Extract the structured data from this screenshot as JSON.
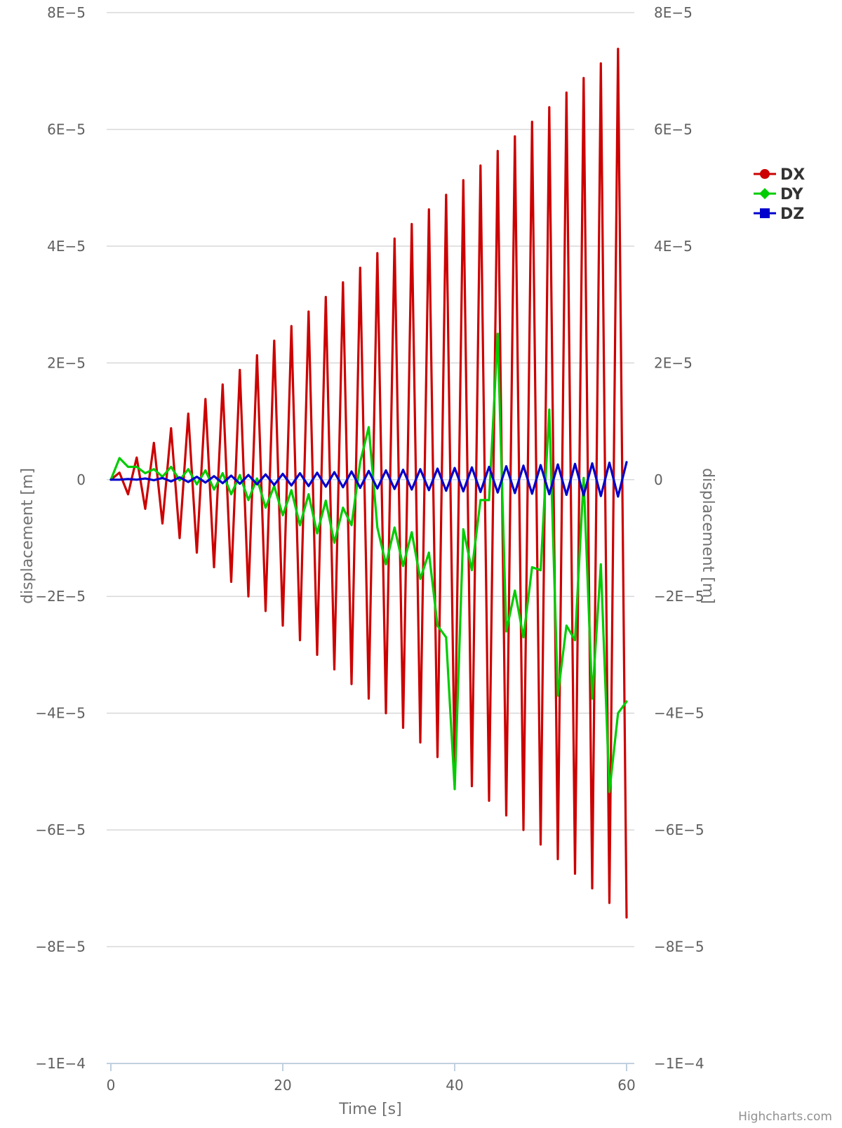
{
  "chart_data": {
    "type": "line",
    "title": "",
    "xlabel": "Time [s]",
    "ylabel_left": "displacement [m]",
    "ylabel_right": "displacement [m]",
    "xlim": [
      0,
      60
    ],
    "ylim": [
      -0.0001,
      8e-05
    ],
    "x_ticks": [
      0,
      20,
      40,
      60
    ],
    "x_tick_labels": [
      "0",
      "20",
      "40",
      "60"
    ],
    "y_ticks": [
      8e-05,
      6e-05,
      4e-05,
      2e-05,
      0,
      -2e-05,
      -4e-05,
      -6e-05,
      -8e-05,
      -0.0001
    ],
    "y_tick_labels": [
      "8E−5",
      "6E−5",
      "4E−5",
      "2E−5",
      "0",
      "−2E−5",
      "−4E−5",
      "−6E−5",
      "−8E−5",
      "−1E−4"
    ],
    "grid": true,
    "legend_position": "right",
    "credits": "Highcharts.com",
    "x": [
      0,
      1,
      2,
      3,
      4,
      5,
      6,
      7,
      8,
      9,
      10,
      11,
      12,
      13,
      14,
      15,
      16,
      17,
      18,
      19,
      20,
      21,
      22,
      23,
      24,
      25,
      26,
      27,
      28,
      29,
      30,
      31,
      32,
      33,
      34,
      35,
      36,
      37,
      38,
      39,
      40,
      41,
      42,
      43,
      44,
      45,
      46,
      47,
      48,
      49,
      50,
      51,
      52,
      53,
      54,
      55,
      56,
      57,
      58,
      59,
      60
    ],
    "series": [
      {
        "name": "DX",
        "color": "#cc0000",
        "marker": "circle",
        "values": [
          0,
          1.2e-06,
          -2.5e-06,
          3.8e-06,
          -5e-06,
          6.3e-06,
          -7.5e-06,
          8.8e-06,
          -1e-05,
          1.13e-05,
          -1.25e-05,
          1.38e-05,
          -1.5e-05,
          1.63e-05,
          -1.75e-05,
          1.88e-05,
          -2e-05,
          2.13e-05,
          -2.25e-05,
          2.38e-05,
          -2.5e-05,
          2.63e-05,
          -2.75e-05,
          2.88e-05,
          -3e-05,
          3.13e-05,
          -3.25e-05,
          3.38e-05,
          -3.5e-05,
          3.63e-05,
          -3.75e-05,
          3.88e-05,
          -4e-05,
          4.13e-05,
          -4.25e-05,
          4.38e-05,
          -4.5e-05,
          4.63e-05,
          -4.75e-05,
          4.88e-05,
          -5e-05,
          5.13e-05,
          -5.25e-05,
          5.38e-05,
          -5.5e-05,
          5.63e-05,
          -5.75e-05,
          5.88e-05,
          -6e-05,
          6.13e-05,
          -6.25e-05,
          6.38e-05,
          -6.5e-05,
          6.63e-05,
          -6.75e-05,
          6.88e-05,
          -7e-05,
          7.13e-05,
          -7.25e-05,
          7.38e-05,
          -7.5e-05
        ]
      },
      {
        "name": "DY",
        "color": "#00cc00",
        "marker": "diamond",
        "values": [
          0,
          3.7e-06,
          2.2e-06,
          2.2e-06,
          1.1e-06,
          1.8e-06,
          5e-07,
          2.2e-06,
          -1e-07,
          1.8e-06,
          -8e-07,
          1.6e-06,
          -1.7e-06,
          1.1e-06,
          -2.5e-06,
          8e-07,
          -3.5e-06,
          2e-07,
          -4.8e-06,
          -1.1e-06,
          -6.1e-06,
          -1.8e-06,
          -7.8e-06,
          -2.5e-06,
          -9.2e-06,
          -3.6e-06,
          -1.08e-05,
          -4.8e-06,
          -7.8e-06,
          3e-06,
          9e-06,
          -8.2e-06,
          -1.45e-05,
          -8.2e-06,
          -1.48e-05,
          -9e-06,
          -1.7e-05,
          -1.25e-05,
          -2.5e-05,
          -2.7e-05,
          -5.3e-05,
          -8.5e-06,
          -1.55e-05,
          -3.5e-06,
          -3.5e-06,
          2.5e-05,
          -2.6e-05,
          -1.9e-05,
          -2.7e-05,
          -1.5e-05,
          -1.55e-05,
          1.2e-05,
          -3.7e-05,
          -2.5e-05,
          -2.75e-05,
          3e-07,
          -3.75e-05,
          -1.45e-05,
          -5.35e-05,
          -4e-05,
          -3.8e-05
        ]
      },
      {
        "name": "DZ",
        "color": "#0000cc",
        "marker": "square",
        "values": [
          0,
          0,
          1e-07,
          0,
          2e-07,
          -1e-07,
          3e-07,
          -3e-07,
          4e-07,
          -4e-07,
          5e-07,
          -5e-07,
          6e-07,
          -6e-07,
          7e-07,
          -7e-07,
          8e-07,
          -8e-07,
          9e-07,
          -9e-07,
          1e-06,
          -1e-06,
          1.1e-06,
          -1.1e-06,
          1.2e-06,
          -1.2e-06,
          1.3e-06,
          -1.3e-06,
          1.4e-06,
          -1.4e-06,
          1.5e-06,
          -1.5e-06,
          1.6e-06,
          -1.6e-06,
          1.7e-06,
          -1.7e-06,
          1.8e-06,
          -1.8e-06,
          1.9e-06,
          -1.9e-06,
          2e-06,
          -2e-06,
          2.1e-06,
          -2.1e-06,
          2.2e-06,
          -2.2e-06,
          2.3e-06,
          -2.3e-06,
          2.4e-06,
          -2.4e-06,
          2.5e-06,
          -2.5e-06,
          2.6e-06,
          -2.6e-06,
          2.7e-06,
          -2.7e-06,
          2.8e-06,
          -2.8e-06,
          2.9e-06,
          -2.9e-06,
          3e-06
        ]
      }
    ]
  }
}
